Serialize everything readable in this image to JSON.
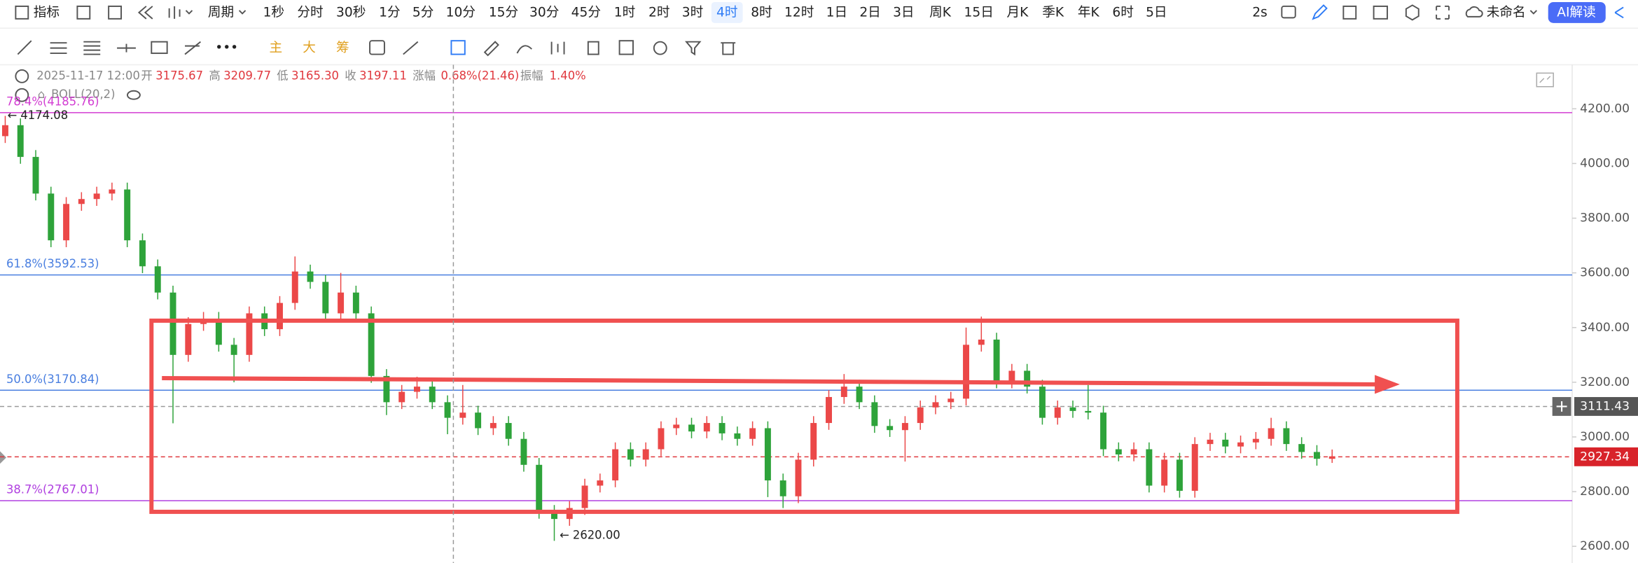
{
  "toolbar": {
    "indicator": "指标",
    "period": "周期",
    "periods": [
      "1秒",
      "分时",
      "30秒",
      "1分",
      "5分",
      "10分",
      "15分",
      "30分",
      "45分",
      "1时",
      "2时",
      "3时",
      "4时",
      "8时",
      "12时",
      "1日",
      "2日",
      "3日",
      "周K",
      "15日",
      "月K",
      "季K",
      "年K",
      "6时",
      "5日"
    ],
    "refresh": "2s",
    "layout_name": "未命名",
    "ai": "AI解读"
  },
  "drawing_bar": {
    "main": "主",
    "big": "大",
    "chips": "筹"
  },
  "info_bar": {
    "time": "2025-11-17 12:00",
    "open_label": "开",
    "open": "3175.67",
    "high_label": "高",
    "high": "3209.77",
    "low_label": "低",
    "low": "3165.30",
    "close_label": "收",
    "close": "3197.11",
    "change_label": "涨幅",
    "change": "0.68%(21.46)",
    "amplitude_label": "振幅",
    "amplitude": "1.40%",
    "indicator": "BOLL(20,2)"
  },
  "chart_data": {
    "type": "candlestick",
    "up_color": "#eb4848",
    "down_color": "#2ea33a",
    "open": [
      4100,
      4140,
      4024,
      3890,
      3719,
      3852,
      3870,
      3890,
      3905,
      3719,
      3624,
      3528,
      3300,
      3413,
      3432,
      3337,
      3300,
      3452,
      3394,
      3490,
      3605,
      3567,
      3452,
      3528,
      3452,
      3223,
      3127,
      3165,
      3184,
      3127,
      3070,
      3089,
      3032,
      3051,
      2993,
      2898,
      2726,
      2700,
      2740,
      2822,
      2841,
      2955,
      2917,
      2955,
      3032,
      3045,
      3020,
      3051,
      3013,
      2993,
      3032,
      2841,
      2783,
      2917,
      3051,
      3146,
      3184,
      3127,
      3040,
      3025,
      3051,
      3108,
      3127,
      3140,
      3337,
      3356,
      3203,
      3242,
      3184,
      3070,
      3108,
      3095,
      3089,
      2955,
      2936,
      2955,
      2822,
      2917,
      2803,
      2974,
      2990,
      2965,
      2980,
      2993,
      3032,
      2974,
      2945,
      2920
    ],
    "high": [
      4174.08,
      4165,
      4049,
      3915,
      3877,
      3895,
      3915,
      3930,
      3930,
      3744,
      3649,
      3553,
      3438,
      3457,
      3457,
      3362,
      3477,
      3477,
      3515,
      3660,
      3630,
      3592,
      3600,
      3553,
      3477,
      3248,
      3190,
      3220,
      3209,
      3152,
      3190,
      3114,
      3076,
      3076,
      3018,
      2923,
      2751,
      2765,
      2847,
      2866,
      2980,
      2980,
      2980,
      3057,
      3070,
      3070,
      3076,
      3076,
      3038,
      3057,
      3057,
      2866,
      2942,
      3076,
      3171,
      3230,
      3209,
      3152,
      3065,
      3076,
      3133,
      3152,
      3165,
      3400,
      3440,
      3381,
      3267,
      3267,
      3209,
      3133,
      3133,
      3190,
      3114,
      2980,
      2980,
      2980,
      2942,
      2942,
      2999,
      3015,
      3015,
      3005,
      3018,
      3070,
      3057,
      2999,
      2970,
      2954
    ],
    "low": [
      4075,
      3999,
      3865,
      3694,
      3694,
      3827,
      3845,
      3865,
      3694,
      3599,
      3503,
      3050,
      3275,
      3388,
      3312,
      3200,
      3275,
      3369,
      3369,
      3465,
      3542,
      3427,
      3427,
      3427,
      3198,
      3080,
      3102,
      3140,
      3102,
      3010,
      3045,
      3007,
      3007,
      2968,
      2873,
      2701,
      2620.0,
      2675,
      2715,
      2797,
      2816,
      2892,
      2892,
      2930,
      3007,
      2995,
      2995,
      2988,
      2968,
      2968,
      2780,
      2740,
      2758,
      2892,
      3026,
      3121,
      3102,
      3015,
      3000,
      2910,
      3026,
      3083,
      3102,
      3115,
      3312,
      3178,
      3178,
      3159,
      3045,
      3045,
      3070,
      3064,
      2930,
      2911,
      2911,
      2797,
      2797,
      2778,
      2778,
      2949,
      2940,
      2940,
      2955,
      2968,
      2949,
      2920,
      2895,
      2905
    ],
    "close": [
      4140,
      4024,
      3890,
      3719,
      3852,
      3870,
      3890,
      3905,
      3719,
      3624,
      3528,
      3300,
      3413,
      3432,
      3337,
      3300,
      3452,
      3394,
      3490,
      3605,
      3567,
      3452,
      3528,
      3452,
      3223,
      3127,
      3165,
      3184,
      3127,
      3070,
      3089,
      3032,
      3051,
      2993,
      2898,
      2726,
      2700,
      2740,
      2822,
      2841,
      2955,
      2917,
      2955,
      3032,
      3045,
      3020,
      3051,
      3013,
      2993,
      3032,
      2841,
      2783,
      2917,
      3051,
      3146,
      3184,
      3127,
      3040,
      3025,
      3051,
      3108,
      3127,
      3140,
      3337,
      3356,
      3203,
      3242,
      3184,
      3070,
      3108,
      3095,
      3089,
      2955,
      2936,
      2955,
      2822,
      2917,
      2803,
      2974,
      2990,
      2965,
      2980,
      2993,
      3032,
      2974,
      2945,
      2920,
      2929
    ],
    "ylim": [
      2539,
      4361
    ],
    "yticks": [
      {
        "value": 2600,
        "label": "2600.00"
      },
      {
        "value": 2800,
        "label": "2800.00"
      },
      {
        "value": 3000,
        "label": "3000.00"
      },
      {
        "value": 3200,
        "label": "3200.00"
      },
      {
        "value": 3400,
        "label": "3400.00"
      },
      {
        "value": 3600,
        "label": "3600.00"
      },
      {
        "value": 3800,
        "label": "3800.00"
      },
      {
        "value": 4000,
        "label": "4000.00"
      },
      {
        "value": 4200,
        "label": "4200.00"
      }
    ],
    "fib_levels": [
      {
        "value": 4185.76,
        "label": "78.4%(4185.76)",
        "color": "#d23cd2"
      },
      {
        "value": 3592.53,
        "label": "61.8%(3592.53)",
        "color": "#4a7fe0"
      },
      {
        "value": 3170.84,
        "label": "50.0%(3170.84)",
        "color": "#4a7fe0"
      },
      {
        "value": 2767.01,
        "label": "38.7%(2767.01)",
        "color": "#b040e0"
      }
    ],
    "high_marker": {
      "value": 4174.08,
      "label": "← 4174.08"
    },
    "low_marker": {
      "value": 2620.0,
      "label": "← 2620.00"
    },
    "crosshair_price": {
      "value": 3111.43,
      "label": "3111.43"
    },
    "last_price": {
      "value": 2927.34,
      "label": "2927.34"
    }
  }
}
